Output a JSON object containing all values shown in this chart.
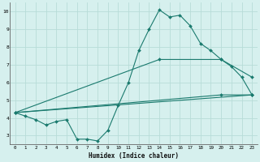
{
  "xlabel": "Humidex (Indice chaleur)",
  "ylabel": "",
  "bg_color": "#d6f0ee",
  "grid_color": "#b8dcd8",
  "line_color": "#1a7a6e",
  "xlim": [
    -0.5,
    23.5
  ],
  "ylim": [
    2.5,
    10.5
  ],
  "xticks": [
    0,
    1,
    2,
    3,
    4,
    5,
    6,
    7,
    8,
    9,
    10,
    11,
    12,
    13,
    14,
    15,
    16,
    17,
    18,
    19,
    20,
    21,
    22,
    23
  ],
  "yticks": [
    3,
    4,
    5,
    6,
    7,
    8,
    9,
    10
  ],
  "series": [
    {
      "x": [
        0,
        1,
        2,
        3,
        4,
        5,
        6,
        7,
        8,
        9,
        10,
        11,
        12,
        13,
        14,
        15,
        16,
        17,
        18,
        19,
        20,
        21,
        22,
        23
      ],
      "y": [
        4.3,
        4.1,
        3.9,
        3.6,
        3.8,
        3.9,
        2.8,
        2.8,
        2.7,
        3.3,
        4.7,
        6.0,
        7.8,
        9.0,
        10.1,
        9.7,
        9.8,
        9.2,
        8.2,
        7.8,
        7.3,
        6.9,
        6.3,
        5.3
      ]
    },
    {
      "x": [
        0,
        23
      ],
      "y": [
        4.3,
        5.3
      ]
    },
    {
      "x": [
        0,
        14,
        20,
        23
      ],
      "y": [
        4.3,
        7.3,
        7.3,
        6.3
      ]
    },
    {
      "x": [
        0,
        20,
        23
      ],
      "y": [
        4.3,
        5.3,
        5.3
      ]
    }
  ]
}
